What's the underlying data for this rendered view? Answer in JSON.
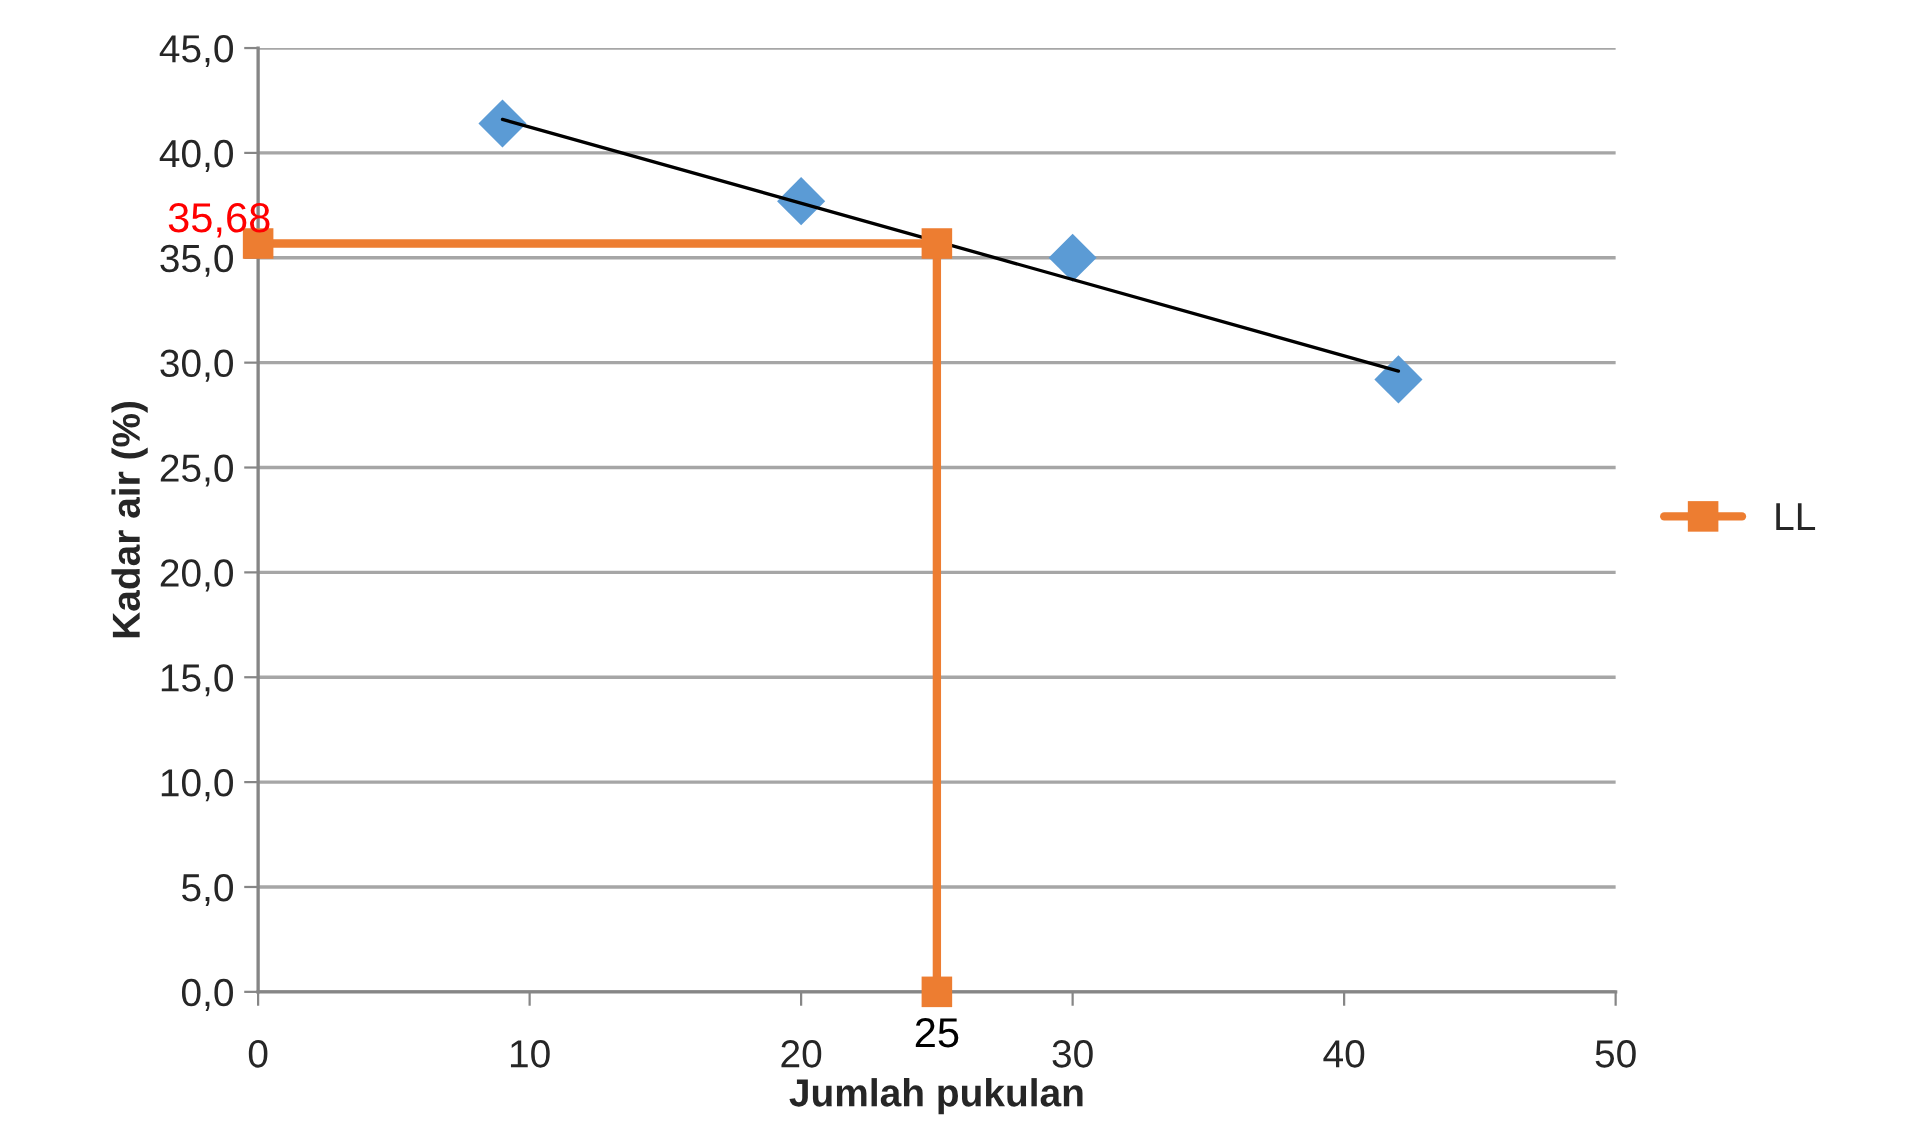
{
  "chart_data": {
    "type": "scatter",
    "xlabel": "Jumlah pukulan",
    "ylabel": "Kadar air (%)",
    "xlim": [
      0,
      50
    ],
    "xticks": [
      0,
      10,
      20,
      30,
      40,
      50
    ],
    "ylim": [
      0,
      45
    ],
    "yticks": [
      {
        "value": 0,
        "label": "0,0"
      },
      {
        "value": 5,
        "label": "5,0"
      },
      {
        "value": 10,
        "label": "10,0"
      },
      {
        "value": 15,
        "label": "15,0"
      },
      {
        "value": 20,
        "label": "20,0"
      },
      {
        "value": 25,
        "label": "25,0"
      },
      {
        "value": 30,
        "label": "30,0"
      },
      {
        "value": 35,
        "label": "35,0"
      },
      {
        "value": 40,
        "label": "40,0"
      },
      {
        "value": 45,
        "label": "45,0"
      }
    ],
    "grid": "y",
    "legend": "right",
    "series": [
      {
        "color": "#5b9bd5",
        "marker": "diamond",
        "x": [
          9,
          20,
          30,
          42
        ],
        "values": [
          41.4,
          37.7,
          35.0,
          29.2
        ]
      },
      {
        "type": "line",
        "color": "#000000",
        "marker": "none",
        "x": [
          9,
          42
        ],
        "values": [
          41.6,
          29.6
        ]
      },
      {
        "type": "line",
        "name": "LL",
        "color": "#ed7d31",
        "marker": "square",
        "x": [
          0,
          25,
          25
        ],
        "values": [
          35.68,
          35.68,
          0
        ]
      }
    ],
    "annotations": [
      {
        "text": "35,68",
        "x": 0,
        "y": 35.68
      },
      {
        "text": "25",
        "x": 25,
        "y": 0
      }
    ]
  }
}
